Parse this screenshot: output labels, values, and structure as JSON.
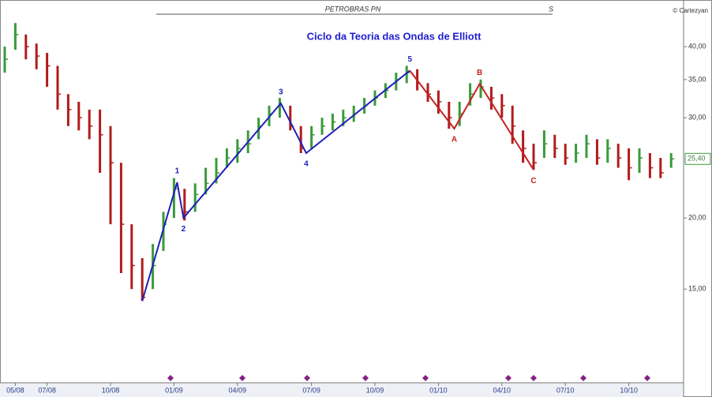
{
  "header": {
    "ticker": "PETROBRAS PN",
    "period": "S",
    "credit": "© Cartezyan"
  },
  "chart_data": {
    "type": "ohlc",
    "title": "Ciclo da Teoria das Ondas de Elliott",
    "log_scale": true,
    "up_color": "#3a9a3a",
    "down_color": "#b01c1c",
    "categories": [
      null,
      "05/08",
      null,
      null,
      "07/08",
      null,
      null,
      null,
      null,
      null,
      "10/08",
      null,
      null,
      null,
      null,
      null,
      "01/09",
      null,
      null,
      null,
      null,
      null,
      "04/09",
      null,
      null,
      null,
      null,
      null,
      null,
      "07/09",
      null,
      null,
      null,
      null,
      null,
      "10/09",
      null,
      null,
      null,
      null,
      null,
      "01/10",
      null,
      null,
      null,
      null,
      null,
      "04/10",
      null,
      null,
      null,
      null,
      null,
      "07/10",
      null,
      null,
      null,
      null,
      null,
      "10/10",
      null,
      null,
      null,
      null
    ],
    "high": [
      40,
      44,
      42,
      40.5,
      39,
      37,
      33,
      32,
      31,
      31,
      29,
      25,
      19.5,
      17,
      18,
      20.5,
      23.5,
      22.5,
      23,
      24.5,
      25.5,
      26.5,
      27.5,
      28.5,
      30,
      31.5,
      32.5,
      31.5,
      29,
      29,
      30,
      30.5,
      31,
      31.5,
      32.5,
      33.5,
      34.5,
      36,
      37,
      36.5,
      34.5,
      33.5,
      32,
      32,
      34.5,
      35,
      34,
      33,
      31.5,
      28.5,
      27,
      28.5,
      28,
      27,
      27,
      28,
      27.5,
      27.5,
      27,
      26.5,
      26.5,
      26,
      25.5,
      26
    ],
    "low": [
      36,
      39.5,
      38,
      36.5,
      34,
      31,
      29,
      28.5,
      27.5,
      24,
      19.5,
      16,
      15,
      14.3,
      15,
      17.5,
      20,
      19.8,
      20.5,
      22,
      23,
      24.5,
      25,
      26,
      27.5,
      29,
      30,
      28.5,
      26,
      26.5,
      28,
      28.5,
      29,
      29.5,
      30.5,
      31.5,
      32.5,
      33.5,
      34.5,
      33.5,
      32,
      30.5,
      28.7,
      29,
      31.5,
      32.5,
      31,
      30,
      27,
      25,
      24.3,
      25.5,
      25.5,
      24.8,
      25,
      25.5,
      24.8,
      25,
      24.5,
      23.3,
      24,
      23.5,
      23.5,
      24.5
    ],
    "close": [
      38,
      42,
      40,
      38.5,
      37,
      33,
      31,
      30,
      29,
      28,
      25,
      19.5,
      16.5,
      14.5,
      16.5,
      19.5,
      22.5,
      20.5,
      22,
      23,
      24,
      25.5,
      26.5,
      27,
      29,
      30.5,
      31.5,
      29,
      26.5,
      28,
      29,
      29.5,
      30,
      30.5,
      31.5,
      32.5,
      33.5,
      35,
      36,
      34.5,
      33,
      32,
      30,
      30.5,
      33,
      34,
      32.5,
      31.5,
      29,
      26.5,
      25,
      27,
      26.5,
      25.5,
      26,
      27,
      25.5,
      26.5,
      25.5,
      24.5,
      25.5,
      24.5,
      24,
      25.4
    ],
    "waves": [
      {
        "color": "#1f1fb8",
        "points": [
          {
            "x": 13,
            "value": 14.3
          },
          {
            "label": "1",
            "x": 16.3,
            "value": 23.1
          },
          {
            "label": "2",
            "x": 16.9,
            "value": 20
          },
          {
            "label": "3",
            "x": 26.1,
            "value": 31.8
          },
          {
            "label": "4",
            "x": 28.5,
            "value": 26
          },
          {
            "label": "5",
            "x": 38.3,
            "value": 36.3
          }
        ]
      },
      {
        "color": "#c42222",
        "points": [
          {
            "x": 38.3,
            "value": 36.3
          },
          {
            "label": "A",
            "x": 42.5,
            "value": 28.7
          },
          {
            "label": "B",
            "x": 44.9,
            "value": 34.4
          },
          {
            "label": "C",
            "x": 50,
            "value": 24.3
          }
        ]
      }
    ],
    "last": {
      "value": 25.4,
      "label": "25,40"
    },
    "ylim": [
      10.6,
      48.3
    ],
    "yticks": [
      {
        "value": 15,
        "label": "15,00"
      },
      {
        "value": 20,
        "label": "20,00"
      },
      {
        "value": 30,
        "label": "30,00"
      },
      {
        "value": 35,
        "label": "35,00"
      },
      {
        "value": 40,
        "label": "40,00"
      }
    ]
  }
}
